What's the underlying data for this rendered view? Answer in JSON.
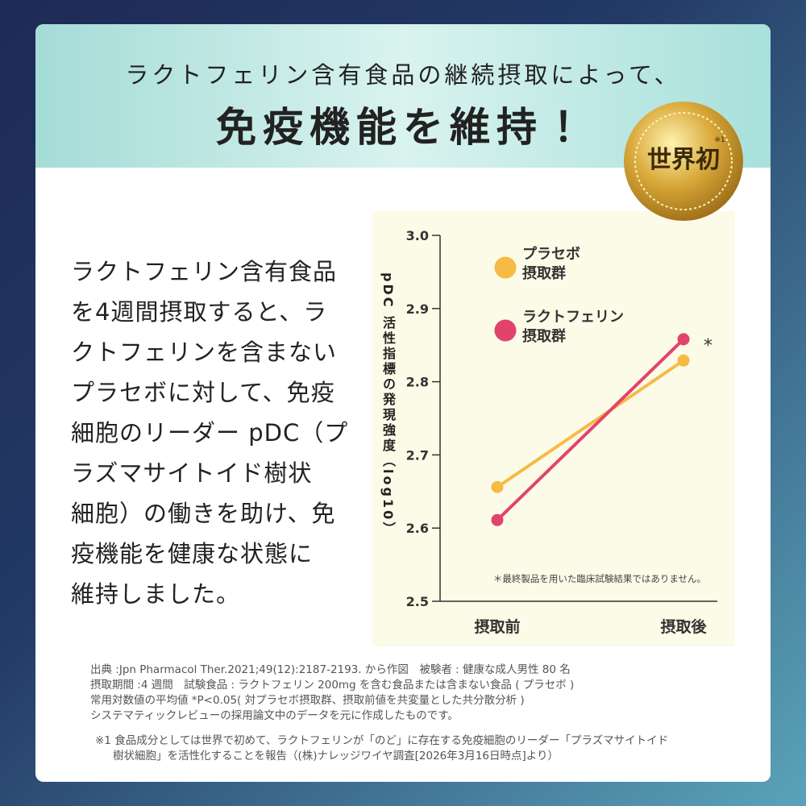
{
  "header": {
    "subtitle": "ラクトフェリン含有食品の継続摂取によって、",
    "title": "免疫機能を維持！"
  },
  "badge": {
    "text": "世界初",
    "note": "※1"
  },
  "body": {
    "lines": [
      "ラクトフェリン含有食品",
      "を4週間摂取すると、ラ",
      "クトフェリンを含まない",
      "プラセボに対して、免疫",
      "細胞のリーダー pDC（プ",
      "ラズマサイトイド樹状",
      "細胞）の働きを助け、免",
      "疫機能を健康な状態に",
      "維持しました。"
    ]
  },
  "chart_data": {
    "type": "line",
    "y_label": "pDC 活性指標の発現強度（log10）",
    "categories": [
      "摂取前",
      "摂取後"
    ],
    "series": [
      {
        "name": "プラセボ\n摂取群",
        "color": "#f6bb45",
        "values": [
          2.656,
          2.829
        ]
      },
      {
        "name": "ラクトフェリン\n摂取群",
        "color": "#e2436c",
        "values": [
          2.611,
          2.858
        ]
      }
    ],
    "ylim": [
      2.5,
      3.0
    ],
    "yticks": [
      2.5,
      2.6,
      2.7,
      2.8,
      2.9,
      {
        "value": 3.0,
        "label": "3.0"
      }
    ],
    "annotations": [
      "*",
      "＊最終製品を用いた臨床試験結果ではありません。"
    ]
  },
  "footnotes": {
    "source": [
      "出典 :Jpn Pharmacol Ther.2021;49(12):2187-2193. から作図　被験者 : 健康な成人男性 80 名",
      "摂取期間 :4 週間　試験食品 : ラクトフェリン 200mg を含む食品または含まない食品 ( プラセボ )",
      "常用対数値の平均値 *P<0.05( 対プラセボ摂取群、摂取前値を共変量とした共分散分析 )",
      "システマティックレビューの採用論文中のデータを元に作成したものです。"
    ],
    "note1": [
      "※1 食品成分としては世界で初めて、ラクトフェリンが「のど」に存在する免疫細胞のリーダー「プラズマサイトイド",
      "樹状細胞」を活性化することを報告（(株)ナレッジワイヤ調査[2026年3月16日時点]より）"
    ]
  }
}
